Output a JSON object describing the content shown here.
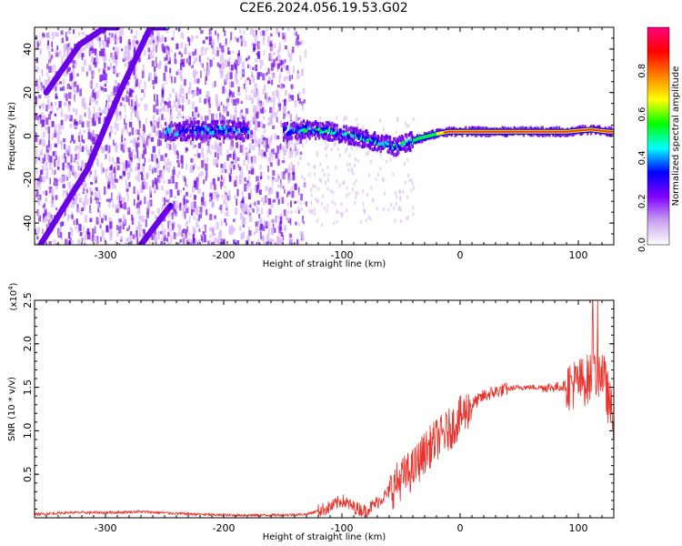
{
  "title": "C2E6.2024.056.19.53.G02",
  "chart_data": [
    {
      "type": "heatmap",
      "title": "C2E6.2024.056.19.53.G02",
      "xlabel": "Height of straight line (km)",
      "ylabel": "Frequency (Hz)",
      "xlim": [
        -360,
        130
      ],
      "ylim": [
        -50,
        50
      ],
      "xticks": [
        -300,
        -200,
        -100,
        0,
        100
      ],
      "yticks": [
        -40,
        -20,
        0,
        20,
        40
      ],
      "colorbar": {
        "label": "Normalized spectral amplitude",
        "range": [
          0,
          1
        ],
        "ticks": [
          "0.0",
          "0.2",
          "0.4",
          "0.6",
          "0.8"
        ]
      },
      "colors": [
        "#ffffff",
        "#d8b8f8",
        "#8a2be2",
        "#6a00e8",
        "#0000ff",
        "#00e0ff",
        "#00ff40",
        "#ffff00",
        "#ff3000",
        "#ff0080"
      ],
      "main_signal": {
        "note": "frequency (Hz) of dominant tone vs height (km)",
        "x": [
          -250,
          -200,
          -150,
          -130,
          -110,
          -90,
          -70,
          -55,
          -45,
          -35,
          -20,
          -10,
          0,
          30,
          60,
          90,
          110,
          125
        ],
        "y": [
          2,
          3,
          2,
          3,
          2,
          0,
          -3,
          -5,
          -3,
          -1,
          1,
          2,
          2,
          2,
          2,
          2,
          3,
          2
        ]
      },
      "diagonal_tracks": [
        {
          "x": [
            -355,
            -315,
            -288,
            -262,
            -248
          ],
          "y": [
            -50,
            -15,
            20,
            50,
            50
          ]
        },
        {
          "x": [
            -350,
            -322,
            -300,
            -290
          ],
          "y": [
            20,
            42,
            50,
            50
          ]
        },
        {
          "x": [
            -270,
            -245
          ],
          "y": [
            -50,
            -32
          ]
        }
      ]
    },
    {
      "type": "line",
      "xlabel": "Height of straight line (km)",
      "ylabel": "SNR (10 * v/v)",
      "exponent_label": "(x10",
      "exponent": "4",
      "xlim": [
        -360,
        130
      ],
      "ylim": [
        0,
        2.5
      ],
      "xticks": [
        -300,
        -200,
        -100,
        0,
        100
      ],
      "yticks": [
        "0.5",
        "1.0",
        "1.5",
        "2.0",
        "2.5"
      ],
      "line_color": "#e8322c",
      "x": [
        -360,
        -330,
        -300,
        -270,
        -240,
        -200,
        -160,
        -130,
        -110,
        -100,
        -90,
        -80,
        -70,
        -60,
        -50,
        -40,
        -30,
        -20,
        -10,
        0,
        10,
        20,
        30,
        40,
        50,
        60,
        70,
        80,
        90,
        100,
        110,
        120,
        128
      ],
      "y": [
        0.04,
        0.06,
        0.06,
        0.07,
        0.05,
        0.03,
        0.03,
        0.04,
        0.12,
        0.2,
        0.12,
        0.08,
        0.18,
        0.3,
        0.45,
        0.55,
        0.75,
        0.9,
        1.0,
        1.15,
        1.3,
        1.4,
        1.45,
        1.48,
        1.5,
        1.5,
        1.5,
        1.5,
        1.52,
        1.55,
        1.6,
        1.7,
        1.2
      ]
    }
  ]
}
